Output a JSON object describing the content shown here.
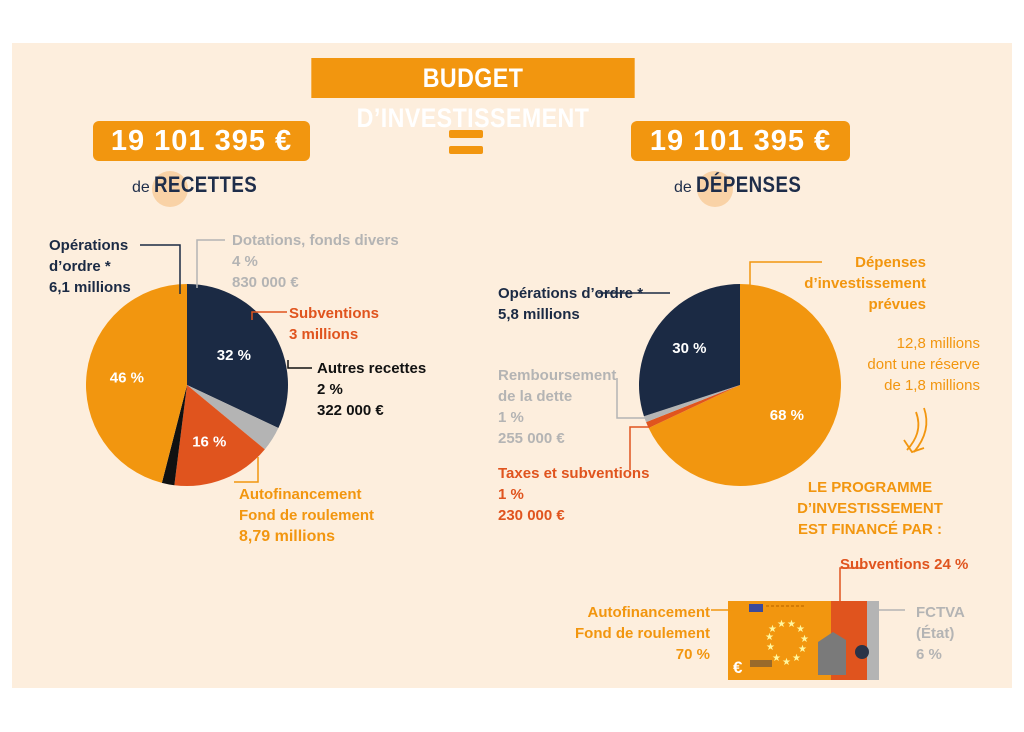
{
  "title": "BUDGET D’INVESTISSEMENT",
  "equals": "=",
  "left": {
    "total": "19 101 395 €",
    "prefix": "de",
    "heading": "RECETTES"
  },
  "right": {
    "total": "19 101 395 €",
    "prefix": "de",
    "heading": "DÉPENSES"
  },
  "recettes_labels": {
    "ordre": [
      "Opérations",
      "d’ordre *",
      "6,1 millions"
    ],
    "dotations": [
      "Dotations, fonds divers",
      "4 %",
      "830 000 €"
    ],
    "subventions": [
      "Subventions",
      "3 millions"
    ],
    "autres": [
      "Autres recettes",
      "2 %",
      "322 000 €"
    ],
    "autofin": [
      "Autofinancement",
      "Fond de roulement",
      "8,79 millions"
    ]
  },
  "depenses_labels": {
    "ordre": [
      "Opérations d’ordre *",
      "5,8 millions"
    ],
    "invest": [
      "Dépenses",
      "d’investissement",
      "prévues"
    ],
    "reserve": [
      "12,8 millions",
      "dont une réserve",
      "de 1,8 millions"
    ],
    "rembours": [
      "Remboursement",
      "de la dette",
      "1 %",
      "255 000 €"
    ],
    "taxes": [
      "Taxes et subventions",
      "1 %",
      "230 000 €"
    ],
    "programme": [
      "LE PROGRAMME",
      "D’INVESTISSEMENT",
      "EST FINANCÉ PAR :"
    ]
  },
  "financement_labels": {
    "subventions": "Subventions 24 %",
    "autofin": [
      "Autofinancement",
      "Fond de roulement",
      "70 %"
    ],
    "fctva": [
      "FCTVA",
      "(État)",
      "6 %"
    ],
    "euro_symbol": "€"
  },
  "chart_data": [
    {
      "type": "pie",
      "title": "de RECETTES",
      "categories": [
        "Opérations d’ordre",
        "Dotations, fonds divers",
        "Subventions",
        "Autres recettes",
        "Autofinancement / Fond de roulement"
      ],
      "values": [
        32,
        4,
        16,
        2,
        46
      ],
      "value_labels": [
        "32 %",
        "",
        "16 %",
        "",
        "46 %"
      ],
      "colors": [
        "#1b2a44",
        "#b4b4b4",
        "#e0541e",
        "#111111",
        "#f2960f"
      ]
    },
    {
      "type": "pie",
      "title": "de DÉPENSES",
      "categories": [
        "Dépenses d’investissement prévues",
        "Taxes et subventions",
        "Remboursement de la dette",
        "Opérations d’ordre"
      ],
      "values": [
        68,
        1,
        1,
        30
      ],
      "value_labels": [
        "68 %",
        "",
        "",
        "30 %"
      ],
      "colors": [
        "#f2960f",
        "#e0541e",
        "#b4b4b4",
        "#1b2a44"
      ]
    },
    {
      "type": "bar",
      "title": "LE PROGRAMME D’INVESTISSEMENT EST FINANCÉ PAR :",
      "categories": [
        "Autofinancement / Fond de roulement",
        "Subventions",
        "FCTVA (État)"
      ],
      "values": [
        70,
        24,
        6
      ],
      "colors": [
        "#f2960f",
        "#e0541e",
        "#b4b4b4"
      ]
    }
  ]
}
